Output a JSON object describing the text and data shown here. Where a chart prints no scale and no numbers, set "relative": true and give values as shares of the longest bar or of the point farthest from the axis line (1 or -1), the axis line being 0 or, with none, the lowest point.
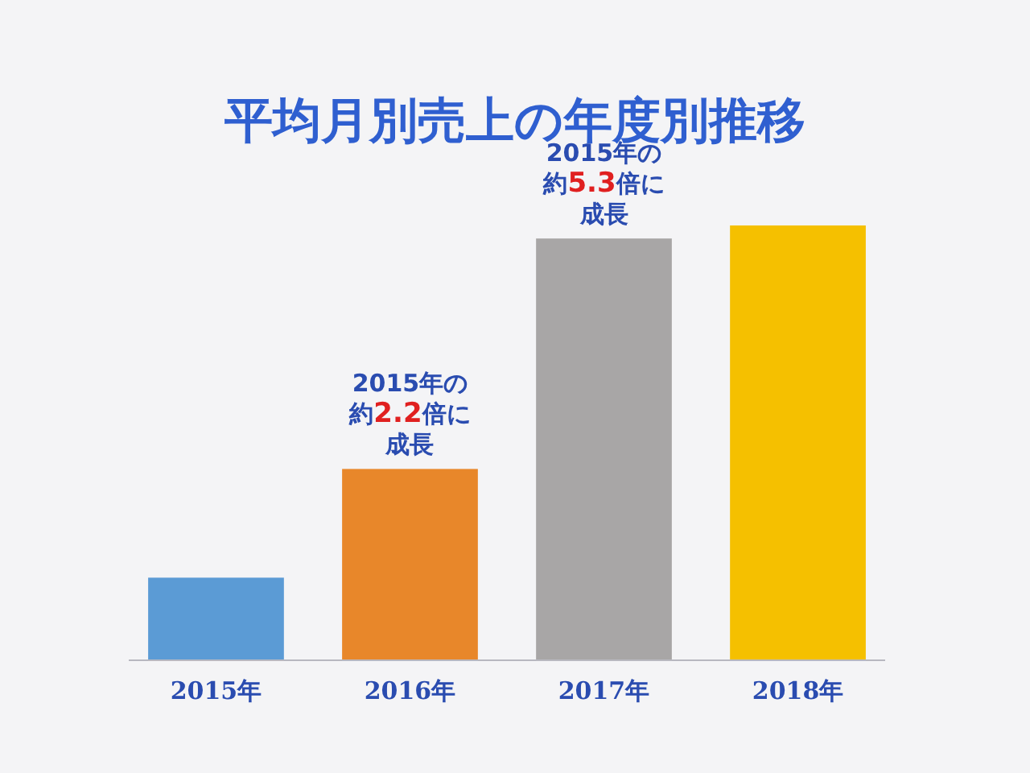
{
  "chart_data": {
    "type": "bar",
    "title": "平均月別売上の年度別推移",
    "relative": true,
    "categories": [
      "2015年",
      "2016年",
      "2017年",
      "2018年"
    ],
    "values": [
      0.19,
      0.44,
      0.97,
      1
    ],
    "colors": [
      "#5b9bd5",
      "#e8872a",
      "#a8a6a6",
      "#f5c000"
    ],
    "annotations": [
      {
        "text": "2015年の約2.2倍に成長",
        "x": "2016年",
        "y": 0.44
      },
      {
        "text": "2015年の約5.3倍に成長",
        "x": "2017年",
        "y": 0.97
      }
    ]
  }
}
